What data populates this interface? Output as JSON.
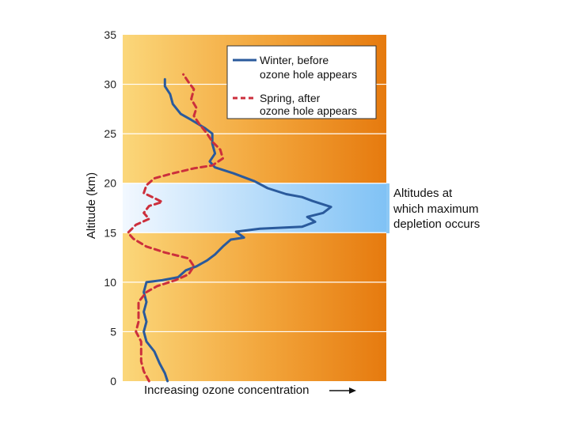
{
  "chart_data": {
    "type": "line",
    "ylabel": "Altitude (km)",
    "xlabel": "Increasing ozone concentration",
    "ylim": [
      0,
      35
    ],
    "yticks": [
      "0",
      "5",
      "10",
      "15",
      "20",
      "25",
      "30",
      "35"
    ],
    "grid": true,
    "legend_position": "top-right",
    "highlight_band": {
      "y_range": [
        15,
        20
      ],
      "label": [
        "Altitudes at",
        "which maximum",
        "depletion occurs"
      ]
    },
    "series": [
      {
        "name": "Winter, before ozone hole appears",
        "legend_lines": [
          "Winter, before",
          "ozone hole appears"
        ],
        "color": "#2a5a9c",
        "style": "solid",
        "points": [
          [
            0.17,
            0
          ],
          [
            0.16,
            0.8
          ],
          [
            0.14,
            1.8
          ],
          [
            0.12,
            3.0
          ],
          [
            0.09,
            4.0
          ],
          [
            0.08,
            5.0
          ],
          [
            0.09,
            6.0
          ],
          [
            0.08,
            7.0
          ],
          [
            0.09,
            8.0
          ],
          [
            0.08,
            9.0
          ],
          [
            0.09,
            10.0
          ],
          [
            0.15,
            10.2
          ],
          [
            0.21,
            10.5
          ],
          [
            0.24,
            11.2
          ],
          [
            0.28,
            11.6
          ],
          [
            0.32,
            12.2
          ],
          [
            0.35,
            12.8
          ],
          [
            0.38,
            13.6
          ],
          [
            0.41,
            14.3
          ],
          [
            0.46,
            14.5
          ],
          [
            0.43,
            15.1
          ],
          [
            0.52,
            15.4
          ],
          [
            0.68,
            15.6
          ],
          [
            0.73,
            16.1
          ],
          [
            0.7,
            16.6
          ],
          [
            0.76,
            17.0
          ],
          [
            0.79,
            17.6
          ],
          [
            0.72,
            18.2
          ],
          [
            0.68,
            18.6
          ],
          [
            0.62,
            18.9
          ],
          [
            0.55,
            19.5
          ],
          [
            0.5,
            20.2
          ],
          [
            0.42,
            21.0
          ],
          [
            0.35,
            21.6
          ],
          [
            0.33,
            22.2
          ],
          [
            0.35,
            23.0
          ],
          [
            0.34,
            24.0
          ],
          [
            0.34,
            25.0
          ],
          [
            0.31,
            25.6
          ],
          [
            0.26,
            26.4
          ],
          [
            0.22,
            27.0
          ],
          [
            0.19,
            28.0
          ],
          [
            0.18,
            29.0
          ],
          [
            0.16,
            29.8
          ],
          [
            0.16,
            30.5
          ]
        ]
      },
      {
        "name": "Spring, after ozone hole appears",
        "legend_lines": [
          "Spring, after",
          "ozone hole appears"
        ],
        "color": "#cc2f3c",
        "style": "dashed",
        "points": [
          [
            0.1,
            0
          ],
          [
            0.08,
            1.0
          ],
          [
            0.07,
            2.0
          ],
          [
            0.07,
            3.0
          ],
          [
            0.07,
            4.0
          ],
          [
            0.05,
            5.0
          ],
          [
            0.06,
            6.0
          ],
          [
            0.06,
            7.0
          ],
          [
            0.06,
            8.0
          ],
          [
            0.09,
            9.0
          ],
          [
            0.13,
            9.6
          ],
          [
            0.2,
            10.2
          ],
          [
            0.25,
            10.8
          ],
          [
            0.27,
            11.6
          ],
          [
            0.25,
            12.4
          ],
          [
            0.16,
            13.0
          ],
          [
            0.09,
            13.6
          ],
          [
            0.04,
            14.4
          ],
          [
            0.02,
            15.0
          ],
          [
            0.05,
            15.8
          ],
          [
            0.1,
            16.4
          ],
          [
            0.08,
            17.0
          ],
          [
            0.1,
            17.7
          ],
          [
            0.15,
            18.1
          ],
          [
            0.12,
            18.5
          ],
          [
            0.08,
            19.0
          ],
          [
            0.09,
            19.8
          ],
          [
            0.12,
            20.5
          ],
          [
            0.19,
            21.0
          ],
          [
            0.27,
            21.5
          ],
          [
            0.34,
            21.8
          ],
          [
            0.38,
            22.5
          ],
          [
            0.37,
            23.4
          ],
          [
            0.34,
            24.2
          ],
          [
            0.32,
            25.0
          ],
          [
            0.29,
            26.0
          ],
          [
            0.27,
            26.8
          ],
          [
            0.28,
            27.6
          ],
          [
            0.26,
            28.5
          ],
          [
            0.27,
            29.5
          ],
          [
            0.25,
            30.2
          ],
          [
            0.23,
            31.0
          ]
        ]
      }
    ]
  }
}
